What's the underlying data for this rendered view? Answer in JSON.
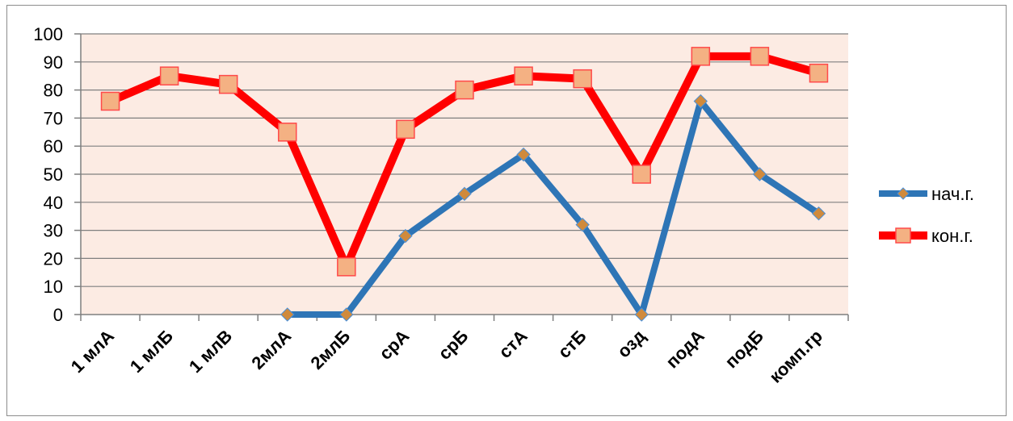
{
  "chart_data": {
    "type": "line",
    "categories": [
      "1 млА",
      "1 млБ",
      "1 млВ",
      "2млА",
      "2млБ",
      "срА",
      "срБ",
      "стА",
      "стБ",
      "озд",
      "подА",
      "подБ",
      "комп.гр"
    ],
    "series": [
      {
        "name": "нач.г.",
        "color": "#2e75b6",
        "marker": "diamond",
        "marker_color": "#d08a3c",
        "values": [
          null,
          null,
          null,
          0,
          0,
          28,
          43,
          57,
          32,
          0,
          76,
          50,
          36
        ]
      },
      {
        "name": "кон.г.",
        "color": "#ff0000",
        "marker": "square",
        "marker_color": "#f4b183",
        "values": [
          76,
          85,
          82,
          65,
          17,
          66,
          80,
          85,
          84,
          50,
          92,
          92,
          86
        ]
      }
    ],
    "ylim": [
      0,
      100
    ],
    "yticks": [
      0,
      10,
      20,
      30,
      40,
      50,
      60,
      70,
      80,
      90,
      100
    ],
    "grid": true,
    "plot_background": "#fcebe3",
    "legend_position": "right"
  }
}
